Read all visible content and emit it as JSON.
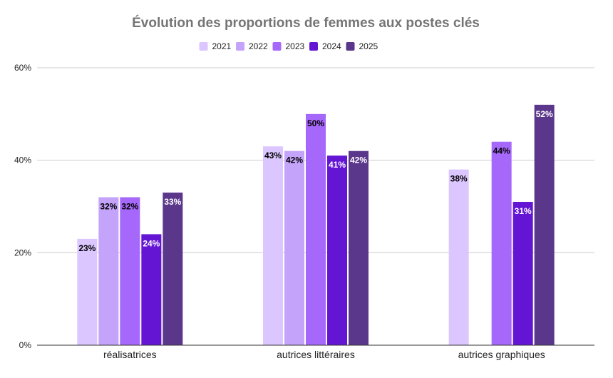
{
  "chart_data": {
    "type": "bar",
    "title": "Évolution des proportions de femmes aux postes clés",
    "categories": [
      "réalisatrices",
      "autrices littéraires",
      "autrices graphiques"
    ],
    "series": [
      {
        "name": "2021",
        "color": "#dcc6ff",
        "values": [
          23,
          43,
          38
        ],
        "labels": [
          "23%",
          "43%",
          "38%"
        ],
        "label_color": "#000000"
      },
      {
        "name": "2022",
        "color": "#c4a3fb",
        "values": [
          32,
          42,
          null
        ],
        "labels": [
          "32%",
          "42%",
          ""
        ],
        "label_color": "#000000"
      },
      {
        "name": "2023",
        "color": "#a668fb",
        "values": [
          32,
          50,
          44
        ],
        "labels": [
          "32%",
          "50%",
          "44%"
        ],
        "label_color": "#000000"
      },
      {
        "name": "2024",
        "color": "#6415d4",
        "values": [
          24,
          41,
          31
        ],
        "labels": [
          "24%",
          "41%",
          "31%"
        ],
        "label_color": "#ffffff"
      },
      {
        "name": "2025",
        "color": "#5b378c",
        "values": [
          33,
          42,
          52
        ],
        "labels": [
          "33%",
          "42%",
          "52%"
        ],
        "label_color": "#ffffff"
      }
    ],
    "ylim": [
      0,
      60
    ],
    "yticks": [
      0,
      20,
      40,
      60
    ],
    "ytick_labels": [
      "0%",
      "20%",
      "40%",
      "60%"
    ],
    "xlabel": "",
    "ylabel": "",
    "grid": true,
    "legend_position": "top-center"
  }
}
